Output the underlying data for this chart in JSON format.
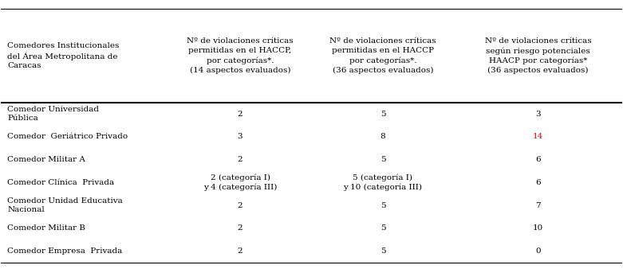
{
  "col0_header": "Comedores Institucionales\ndel Área Metropolitana de\nCaracas",
  "col1_header": "Nº de violaciones críticas\npermitidas en el HACCP,\npor categorías*.\n(14 aspectos evaluados)",
  "col2_header": "Nº de violaciones críticas\npermitidas en el HACCP\npor categorías*.\n(36 aspectos evaluados)",
  "col3_header": "Nº de violaciones críticas\nsegún riesgo potenciales\nHAACP por categorías*\n(36 aspectos evaluados)",
  "rows": [
    {
      "name": "Comedor Universidad\nPública",
      "col1": "2",
      "col2": "5",
      "col3": "3",
      "col3_color": "#000000"
    },
    {
      "name": "Comedor  Geriátrico Privado",
      "col1": "3",
      "col2": "8",
      "col3": "14",
      "col3_color": "#cc0000"
    },
    {
      "name": "Comedor Militar A",
      "col1": "2",
      "col2": "5",
      "col3": "6",
      "col3_color": "#000000"
    },
    {
      "name": "Comedor Clínica  Privada",
      "col1": "2 (categoría I)\ny 4 (categoría III)",
      "col2": "5 (categoría I)\ny 10 (categoría III)",
      "col3": "6",
      "col3_color": "#000000"
    },
    {
      "name": "Comedor Unidad Educativa\nNacional",
      "col1": "2",
      "col2": "5",
      "col3": "7",
      "col3_color": "#000000"
    },
    {
      "name": "Comedor Militar B",
      "col1": "2",
      "col2": "5",
      "col3": "10",
      "col3_color": "#000000"
    },
    {
      "name": "Comedor Empresa  Privada",
      "col1": "2",
      "col2": "5",
      "col3": "0",
      "col3_color": "#000000"
    }
  ],
  "background_color": "#ffffff",
  "header_line_color": "#000000",
  "font_size": 7.5,
  "header_font_size": 7.5
}
